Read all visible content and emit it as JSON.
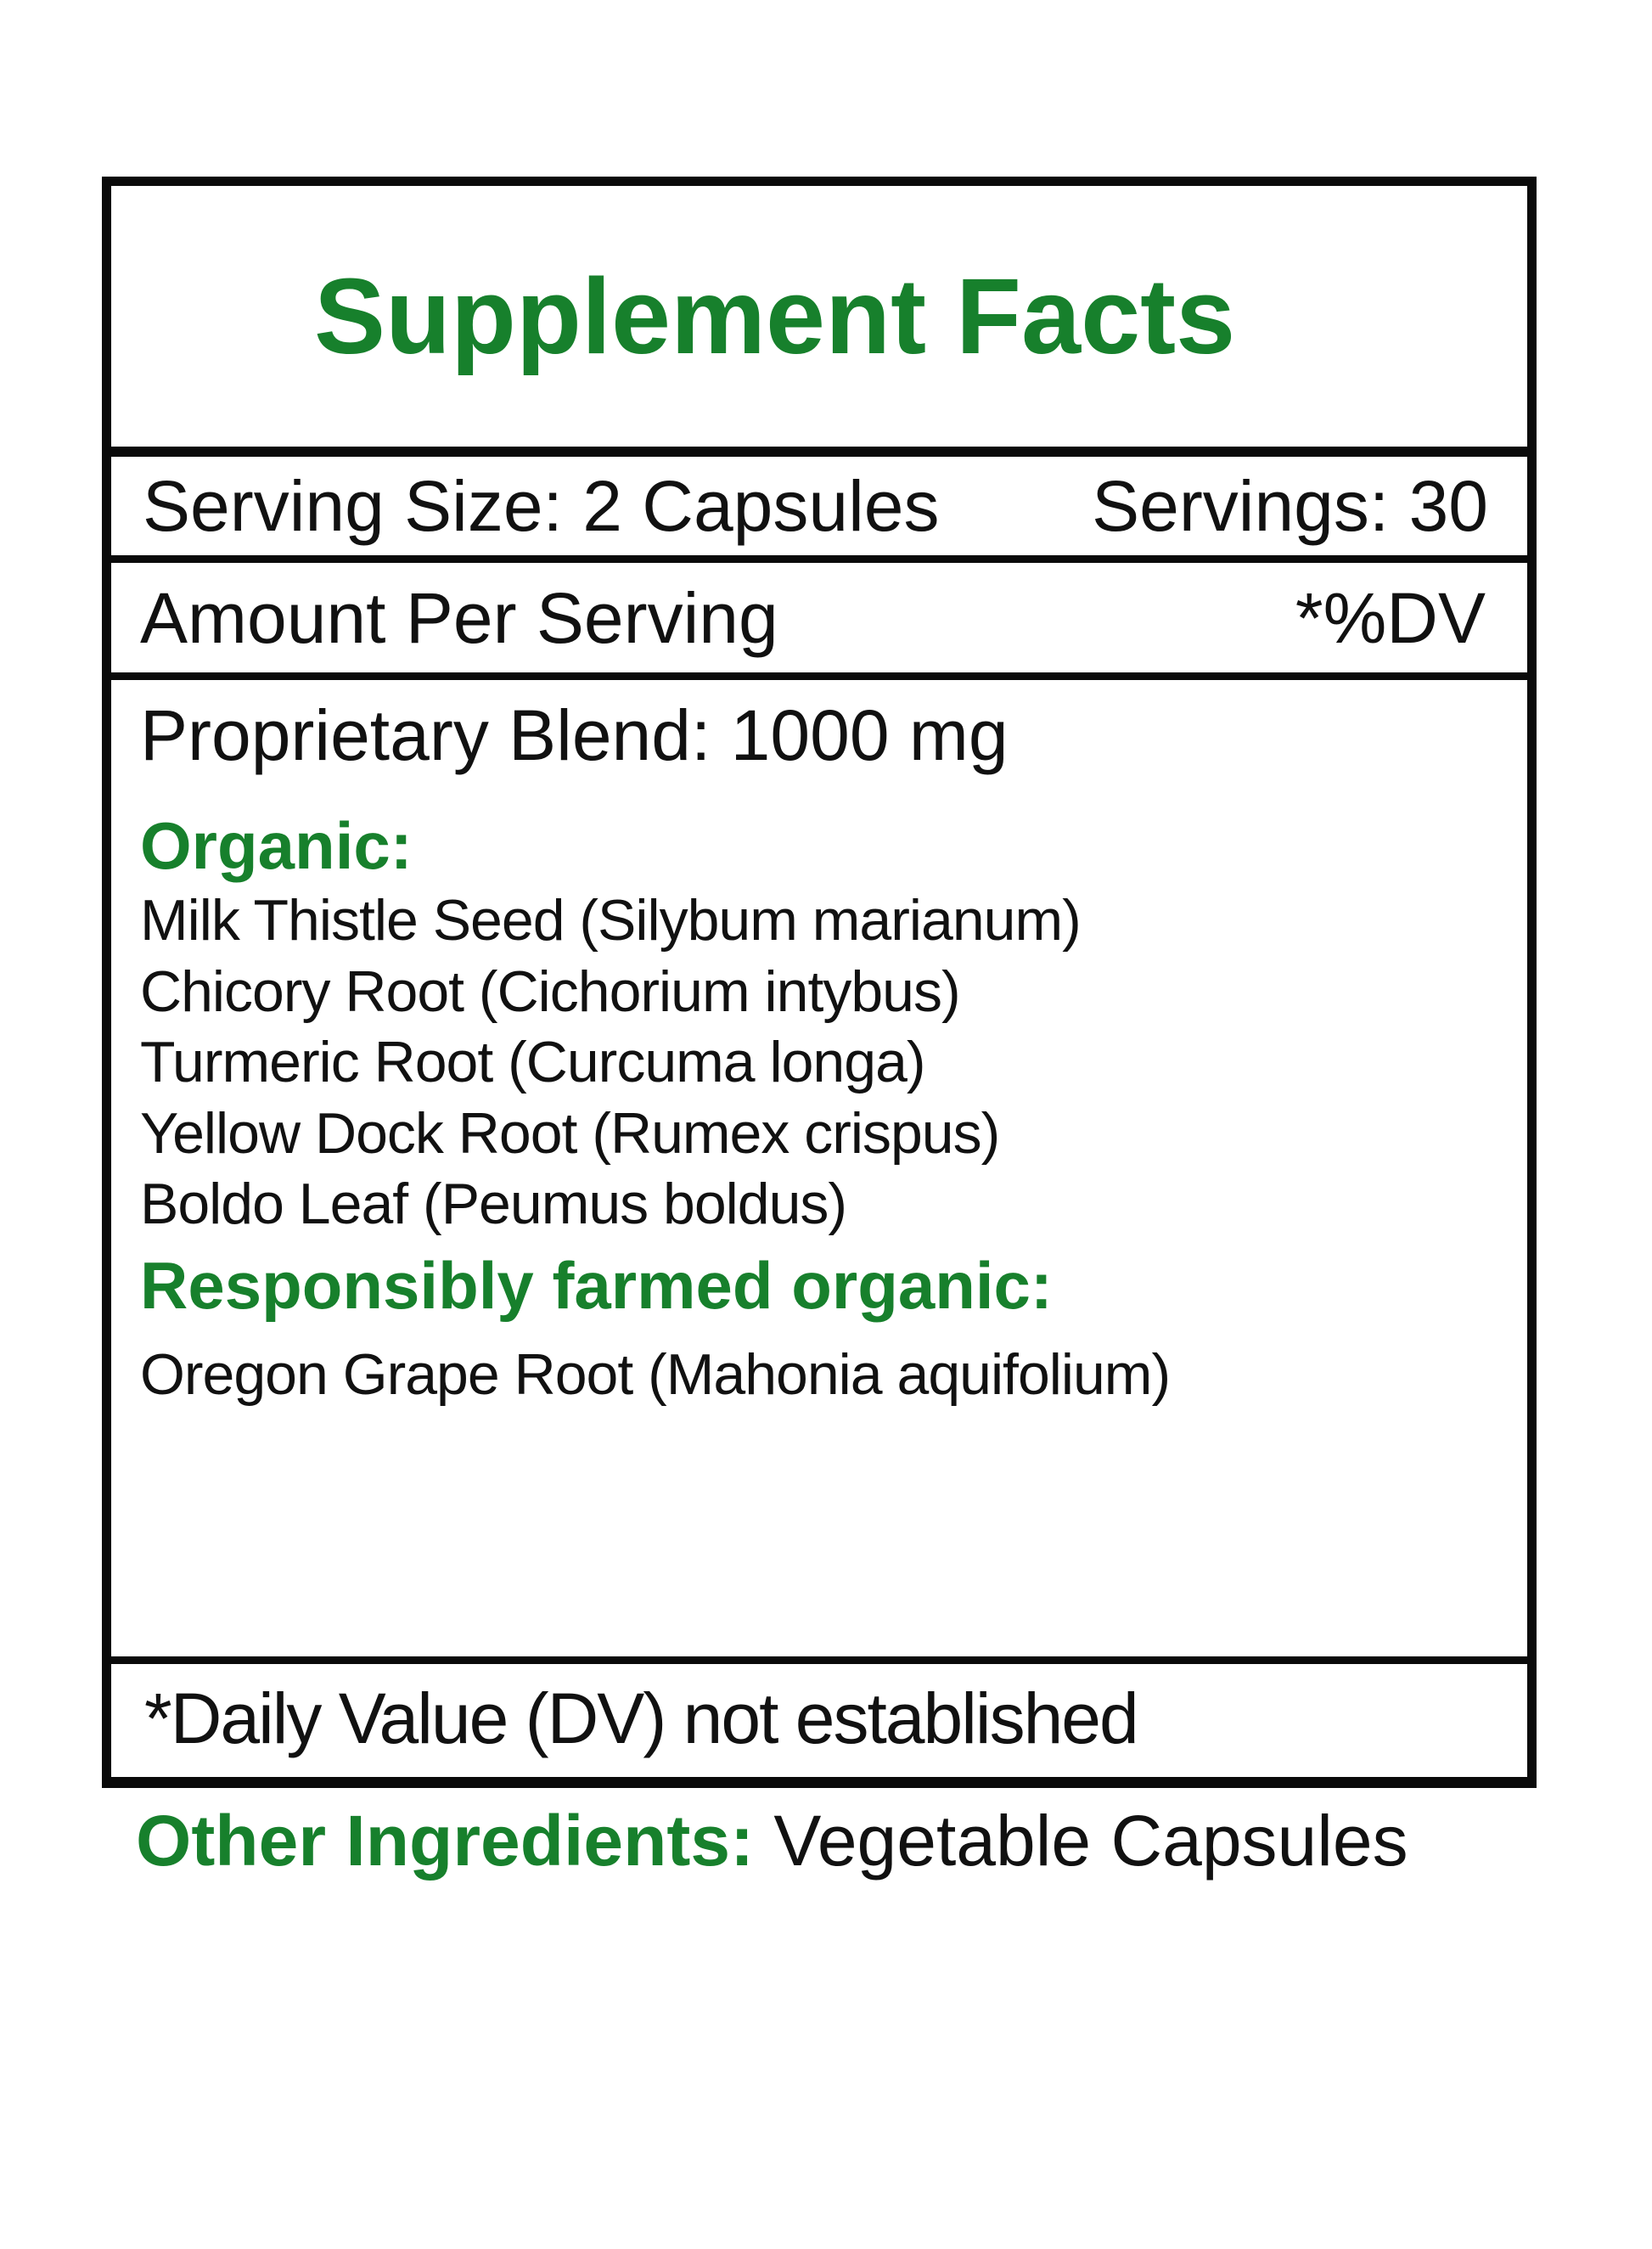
{
  "title": "Supplement Facts",
  "serving_size": "Serving Size: 2 Capsules",
  "servings": "Servings: 30",
  "amount_per_serving": "Amount Per Serving",
  "dv_header": "*%DV",
  "blend": "Proprietary Blend: 1000 mg",
  "organic_heading": "Organic:",
  "organic_items": [
    "Milk Thistle Seed (Silybum marianum)",
    "Chicory Root (Cichorium intybus)",
    "Turmeric Root (Curcuma longa)",
    "Yellow Dock Root (Rumex crispus)",
    "Boldo Leaf (Peumus boldus)"
  ],
  "farmed_heading": "Responsibly farmed organic:",
  "farmed_items": [
    "Oregon Grape Root (Mahonia aquifolium)"
  ],
  "footnote": "*Daily Value (DV) not established",
  "other_ingredients_label": "Other Ingredients:",
  "other_ingredients_value": "Vegetable Capsules",
  "colors": {
    "accent_green": "#17802c",
    "border": "#0a0a0a"
  }
}
